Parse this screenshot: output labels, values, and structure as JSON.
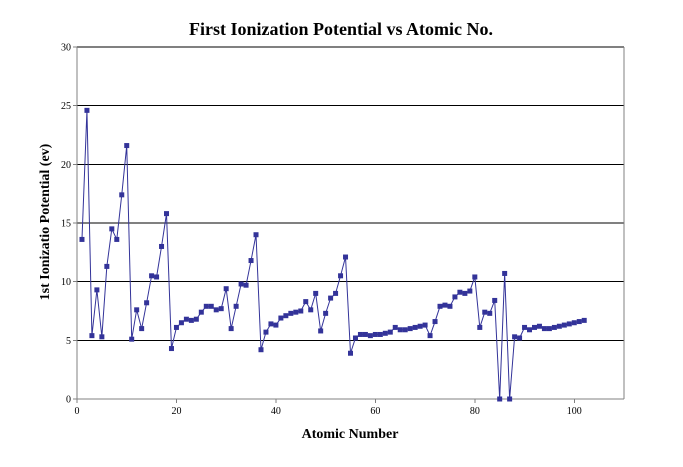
{
  "chart_data": {
    "type": "line",
    "title": "First Ionization Potential vs Atomic No.",
    "xlabel": "Atomic Number",
    "ylabel": "1st Ionizatio Potential (ev)",
    "xlim": [
      0,
      110
    ],
    "ylim": [
      0,
      30
    ],
    "xticks": [
      0,
      20,
      40,
      60,
      80,
      100
    ],
    "yticks": [
      0,
      5,
      10,
      15,
      20,
      25,
      30
    ],
    "grid": "horizontal",
    "legend": "none",
    "series": [
      {
        "color": "#333399",
        "marker": "square",
        "x": [
          1,
          2,
          3,
          4,
          5,
          6,
          7,
          8,
          9,
          10,
          11,
          12,
          13,
          14,
          15,
          16,
          17,
          18,
          19,
          20,
          21,
          22,
          23,
          24,
          25,
          26,
          27,
          28,
          29,
          30,
          31,
          32,
          33,
          34,
          35,
          36,
          37,
          38,
          39,
          40,
          41,
          42,
          43,
          44,
          45,
          46,
          47,
          48,
          49,
          50,
          51,
          52,
          53,
          54,
          55,
          56,
          57,
          58,
          59,
          60,
          61,
          62,
          63,
          64,
          65,
          66,
          67,
          68,
          69,
          70,
          71,
          72,
          73,
          74,
          75,
          76,
          77,
          78,
          79,
          80,
          81,
          82,
          83,
          84,
          85,
          86,
          87,
          88,
          89,
          90,
          91,
          92,
          93,
          94,
          95,
          96,
          97,
          98,
          99,
          100,
          101,
          102
        ],
        "y": [
          13.6,
          24.6,
          5.4,
          9.3,
          5.3,
          11.3,
          14.5,
          13.6,
          17.4,
          21.6,
          5.1,
          7.6,
          6.0,
          8.2,
          10.5,
          10.4,
          13.0,
          15.8,
          4.3,
          6.1,
          6.5,
          6.8,
          6.7,
          6.8,
          7.4,
          7.9,
          7.9,
          7.6,
          7.7,
          9.4,
          6.0,
          7.9,
          9.8,
          9.7,
          11.8,
          14.0,
          4.2,
          5.7,
          6.4,
          6.3,
          6.9,
          7.1,
          7.3,
          7.4,
          7.5,
          8.3,
          7.6,
          9.0,
          5.8,
          7.3,
          8.6,
          9.0,
          10.5,
          12.1,
          3.9,
          5.2,
          5.5,
          5.5,
          5.4,
          5.5,
          5.5,
          5.6,
          5.7,
          6.1,
          5.9,
          5.9,
          6.0,
          6.1,
          6.2,
          6.3,
          5.4,
          6.6,
          7.9,
          8.0,
          7.9,
          8.7,
          9.1,
          9.0,
          9.2,
          10.4,
          6.1,
          7.4,
          7.3,
          8.4,
          0,
          10.7,
          0,
          5.3,
          5.2,
          6.1,
          5.9,
          6.1,
          6.2,
          6.0,
          6.0,
          6.1,
          6.2,
          6.3,
          6.4,
          6.5,
          6.6,
          6.7
        ]
      }
    ]
  }
}
